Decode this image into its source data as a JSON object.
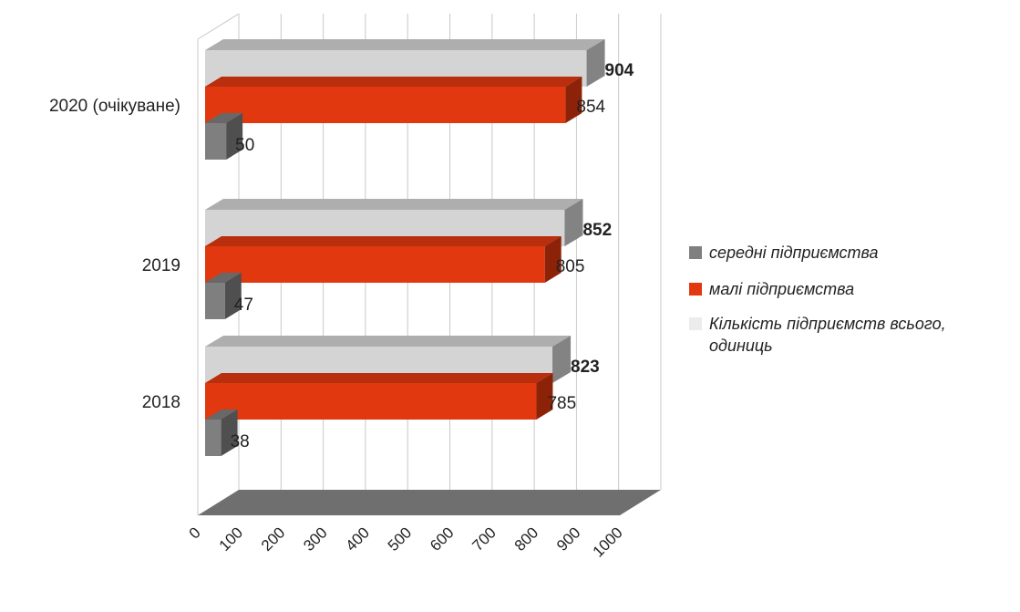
{
  "chart_data": {
    "type": "bar",
    "orientation": "horizontal",
    "three_d": true,
    "title": "",
    "xlabel": "",
    "ylabel": "",
    "categories": [
      "2018",
      "2019",
      "2020 (очікуване)"
    ],
    "series": [
      {
        "name": "середні підприємства",
        "values": [
          38,
          47,
          50
        ],
        "color": "#7f7f7f",
        "label_bold": false
      },
      {
        "name": "малі підприємства",
        "values": [
          785,
          805,
          854
        ],
        "color": "#e1380f",
        "label_bold": false
      },
      {
        "name": "Кількість підприємств всього, одиниць",
        "values": [
          823,
          852,
          904
        ],
        "color": "#d4d4d4",
        "label_bold": true
      }
    ],
    "xlim": [
      0,
      1000
    ],
    "x_ticks": [
      "0",
      "100",
      "200",
      "300",
      "400",
      "500",
      "600",
      "700",
      "800",
      "900",
      "1000"
    ],
    "grid": true,
    "legend_position": "right"
  }
}
